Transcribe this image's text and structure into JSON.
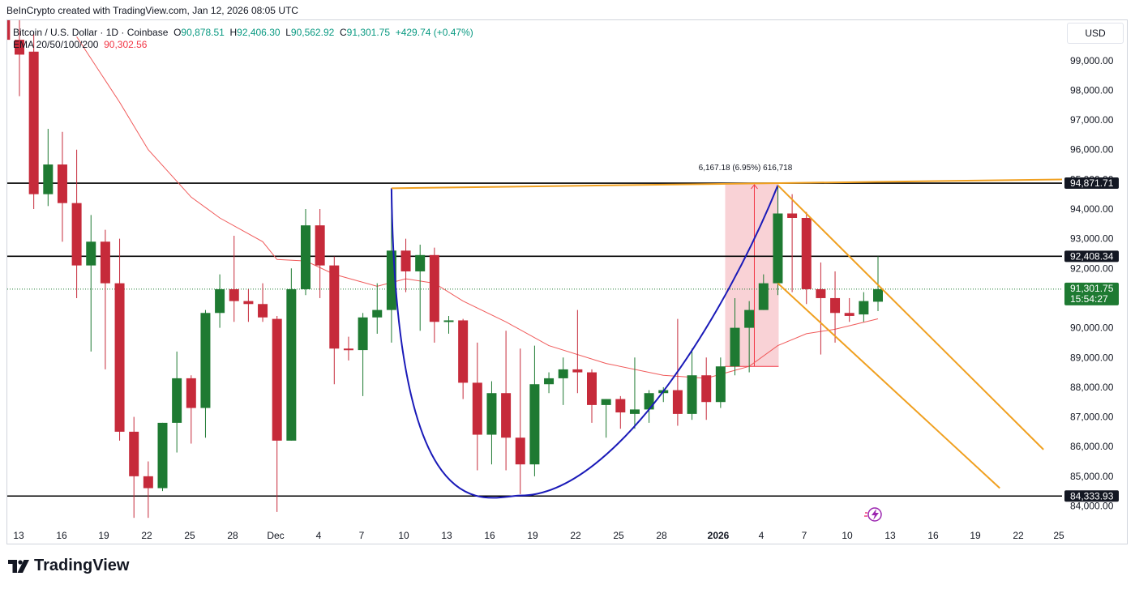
{
  "header": {
    "credit": "BeInCrypto created with TradingView.com, Jan 12, 2026 08:05 UTC"
  },
  "legend": {
    "symbol": "Bitcoin / U.S. Dollar · 1D · Coinbase",
    "o_label": "O",
    "o_value": "90,878.51",
    "h_label": "H",
    "h_value": "92,406.30",
    "l_label": "L",
    "l_value": "90,562.92",
    "c_label": "C",
    "c_value": "91,301.75",
    "change": "+429.74 (+0.47%)",
    "ema_label": "EMA 20/50/100/200",
    "ema_value": "90,302.56"
  },
  "currency": "USD",
  "measure_label": "6,167.18 (6.95%) 616,718",
  "footer": {
    "brand": "TradingView"
  },
  "colors": {
    "up": "#1e7a32",
    "down": "#c62a3a",
    "ema": "#f05a5a",
    "cup": "#1a1ab8",
    "channel": "#f0a020",
    "level": "#000000",
    "measure_fill": "#f7c3c8"
  },
  "chart_data": {
    "type": "candlestick",
    "title": "Bitcoin / U.S. Dollar · 1D · Coinbase",
    "ylim": [
      83600,
      100000
    ],
    "y_ticks": [
      "99,000.00",
      "98,000.00",
      "97,000.00",
      "96,000.00",
      "95,000.00",
      "94,000.00",
      "93,000.00",
      "92,000.00",
      "91,000.00",
      "90,000.00",
      "89,000.00",
      "88,000.00",
      "87,000.00",
      "86,000.00",
      "85,000.00",
      "84,000.00"
    ],
    "x_labels": [
      "13",
      "16",
      "19",
      "22",
      "25",
      "28",
      "Dec",
      "4",
      "7",
      "10",
      "13",
      "16",
      "19",
      "22",
      "25",
      "28",
      "2026",
      "4",
      "7",
      "10",
      "13",
      "16",
      "19",
      "22",
      "25"
    ],
    "price_badges": [
      {
        "label": "94,871.71",
        "value": 94871.71,
        "style": "dark"
      },
      {
        "label": "92,408.34",
        "value": 92408.34,
        "style": "dark"
      },
      {
        "label": "91,301.75",
        "value": 91301.75,
        "style": "green",
        "sublabel": "15:54:27"
      },
      {
        "label": "84,333.93",
        "value": 84333.93,
        "style": "dark"
      }
    ],
    "horizontal_levels": [
      94871.71,
      92408.34,
      84333.93
    ],
    "last_price": 91301.75,
    "candles": [
      {
        "date": "Nov 12",
        "o": 101300,
        "h": 101700,
        "l": 99300,
        "c": 99700
      },
      {
        "date": "Nov 13",
        "o": 99700,
        "h": 100800,
        "l": 97800,
        "c": 99200
      },
      {
        "date": "Nov 14",
        "o": 99300,
        "h": 99900,
        "l": 94000,
        "c": 94500
      },
      {
        "date": "Nov 15",
        "o": 94500,
        "h": 96700,
        "l": 94100,
        "c": 95500
      },
      {
        "date": "Nov 16",
        "o": 95500,
        "h": 96600,
        "l": 92900,
        "c": 94200
      },
      {
        "date": "Nov 17",
        "o": 94200,
        "h": 96000,
        "l": 91000,
        "c": 92100
      },
      {
        "date": "Nov 18",
        "o": 92100,
        "h": 93800,
        "l": 89200,
        "c": 92900
      },
      {
        "date": "Nov 19",
        "o": 92900,
        "h": 93300,
        "l": 88600,
        "c": 91500
      },
      {
        "date": "Nov 20",
        "o": 91500,
        "h": 93000,
        "l": 86200,
        "c": 86500
      },
      {
        "date": "Nov 21",
        "o": 86500,
        "h": 87000,
        "l": 83600,
        "c": 85000
      },
      {
        "date": "Nov 22",
        "o": 85000,
        "h": 85500,
        "l": 83600,
        "c": 84600
      },
      {
        "date": "Nov 23",
        "o": 84600,
        "h": 86800,
        "l": 84500,
        "c": 86800
      },
      {
        "date": "Nov 24",
        "o": 86800,
        "h": 89200,
        "l": 85800,
        "c": 88300
      },
      {
        "date": "Nov 25",
        "o": 88300,
        "h": 88400,
        "l": 86100,
        "c": 87300
      },
      {
        "date": "Nov 26",
        "o": 87300,
        "h": 90600,
        "l": 86300,
        "c": 90500
      },
      {
        "date": "Nov 27",
        "o": 90500,
        "h": 91800,
        "l": 90000,
        "c": 91300
      },
      {
        "date": "Nov 28",
        "o": 91300,
        "h": 93100,
        "l": 90200,
        "c": 90900
      },
      {
        "date": "Nov 29",
        "o": 90900,
        "h": 91300,
        "l": 90200,
        "c": 90800
      },
      {
        "date": "Nov 30",
        "o": 90800,
        "h": 91500,
        "l": 90200,
        "c": 90350
      },
      {
        "date": "Dec 1",
        "o": 90300,
        "h": 90400,
        "l": 83800,
        "c": 86200
      },
      {
        "date": "Dec 2",
        "o": 86200,
        "h": 92000,
        "l": 86200,
        "c": 91300
      },
      {
        "date": "Dec 3",
        "o": 91300,
        "h": 94000,
        "l": 91100,
        "c": 93450
      },
      {
        "date": "Dec 4",
        "o": 93450,
        "h": 94000,
        "l": 91000,
        "c": 92100
      },
      {
        "date": "Dec 5",
        "o": 92100,
        "h": 92400,
        "l": 88100,
        "c": 89300
      },
      {
        "date": "Dec 6",
        "o": 89300,
        "h": 89700,
        "l": 88900,
        "c": 89250
      },
      {
        "date": "Dec 7",
        "o": 89250,
        "h": 90500,
        "l": 87700,
        "c": 90350
      },
      {
        "date": "Dec 8",
        "o": 90350,
        "h": 91500,
        "l": 89800,
        "c": 90600
      },
      {
        "date": "Dec 9",
        "o": 90600,
        "h": 94600,
        "l": 89500,
        "c": 92600
      },
      {
        "date": "Dec 10",
        "o": 92600,
        "h": 93000,
        "l": 91200,
        "c": 91900
      },
      {
        "date": "Dec 11",
        "o": 91900,
        "h": 92800,
        "l": 89900,
        "c": 92450
      },
      {
        "date": "Dec 12",
        "o": 92450,
        "h": 92700,
        "l": 89500,
        "c": 90200
      },
      {
        "date": "Dec 13",
        "o": 90200,
        "h": 90400,
        "l": 89800,
        "c": 90250
      },
      {
        "date": "Dec 14",
        "o": 90250,
        "h": 90300,
        "l": 87600,
        "c": 88150
      },
      {
        "date": "Dec 15",
        "o": 88150,
        "h": 89500,
        "l": 85200,
        "c": 86400
      },
      {
        "date": "Dec 16",
        "o": 86400,
        "h": 88200,
        "l": 85400,
        "c": 87800
      },
      {
        "date": "Dec 17",
        "o": 87800,
        "h": 89900,
        "l": 85200,
        "c": 86300
      },
      {
        "date": "Dec 18",
        "o": 86300,
        "h": 89300,
        "l": 84400,
        "c": 85400
      },
      {
        "date": "Dec 19",
        "o": 85400,
        "h": 89400,
        "l": 85000,
        "c": 88100
      },
      {
        "date": "Dec 20",
        "o": 88100,
        "h": 88500,
        "l": 87800,
        "c": 88300
      },
      {
        "date": "Dec 21",
        "o": 88300,
        "h": 89000,
        "l": 87400,
        "c": 88600
      },
      {
        "date": "Dec 22",
        "o": 88600,
        "h": 90600,
        "l": 87800,
        "c": 88500
      },
      {
        "date": "Dec 23",
        "o": 88500,
        "h": 88600,
        "l": 86800,
        "c": 87400
      },
      {
        "date": "Dec 24",
        "o": 87400,
        "h": 87600,
        "l": 86300,
        "c": 87600
      },
      {
        "date": "Dec 25",
        "o": 87600,
        "h": 87700,
        "l": 86600,
        "c": 87150
      },
      {
        "date": "Dec 26",
        "o": 87100,
        "h": 89000,
        "l": 86600,
        "c": 87250
      },
      {
        "date": "Dec 27",
        "o": 87250,
        "h": 87900,
        "l": 86800,
        "c": 87800
      },
      {
        "date": "Dec 28",
        "o": 87800,
        "h": 88000,
        "l": 87500,
        "c": 87900
      },
      {
        "date": "Dec 29",
        "o": 87900,
        "h": 90300,
        "l": 86700,
        "c": 87100
      },
      {
        "date": "Dec 30",
        "o": 87100,
        "h": 89300,
        "l": 86900,
        "c": 88400
      },
      {
        "date": "Dec 31",
        "o": 88400,
        "h": 89000,
        "l": 86900,
        "c": 87500
      },
      {
        "date": "Jan 1",
        "o": 87500,
        "h": 89000,
        "l": 87300,
        "c": 88700
      },
      {
        "date": "Jan 2",
        "o": 88700,
        "h": 91000,
        "l": 88400,
        "c": 90000
      },
      {
        "date": "Jan 3",
        "o": 90000,
        "h": 90900,
        "l": 88500,
        "c": 90600
      },
      {
        "date": "Jan 4",
        "o": 90600,
        "h": 91800,
        "l": 90600,
        "c": 91500
      },
      {
        "date": "Jan 5",
        "o": 91500,
        "h": 94800,
        "l": 91100,
        "c": 93850
      },
      {
        "date": "Jan 6",
        "o": 93850,
        "h": 94500,
        "l": 91200,
        "c": 93700
      },
      {
        "date": "Jan 7",
        "o": 93700,
        "h": 93900,
        "l": 90800,
        "c": 91300
      },
      {
        "date": "Jan 8",
        "o": 91300,
        "h": 92200,
        "l": 89100,
        "c": 91000
      },
      {
        "date": "Jan 9",
        "o": 91000,
        "h": 91900,
        "l": 89500,
        "c": 90500
      },
      {
        "date": "Jan 10",
        "o": 90500,
        "h": 91000,
        "l": 90200,
        "c": 90400
      },
      {
        "date": "Jan 11",
        "o": 90450,
        "h": 91200,
        "l": 90200,
        "c": 90900
      },
      {
        "date": "Jan 12",
        "o": 90878.51,
        "h": 92406.3,
        "l": 90562.92,
        "c": 91301.75
      }
    ],
    "ema20": [
      {
        "date": "Nov 17",
        "v": 99800
      },
      {
        "date": "Nov 20",
        "v": 97600
      },
      {
        "date": "Nov 22",
        "v": 96000
      },
      {
        "date": "Nov 25",
        "v": 94400
      },
      {
        "date": "Nov 27",
        "v": 93700
      },
      {
        "date": "Nov 30",
        "v": 92900
      },
      {
        "date": "Dec 1",
        "v": 92300
      },
      {
        "date": "Dec 3",
        "v": 92250
      },
      {
        "date": "Dec 5",
        "v": 91800
      },
      {
        "date": "Dec 8",
        "v": 91400
      },
      {
        "date": "Dec 10",
        "v": 91650
      },
      {
        "date": "Dec 12",
        "v": 91500
      },
      {
        "date": "Dec 14",
        "v": 90900
      },
      {
        "date": "Dec 17",
        "v": 90200
      },
      {
        "date": "Dec 20",
        "v": 89400
      },
      {
        "date": "Dec 24",
        "v": 88800
      },
      {
        "date": "Dec 28",
        "v": 88400
      },
      {
        "date": "Dec 31",
        "v": 88300
      },
      {
        "date": "Jan 3",
        "v": 88700
      },
      {
        "date": "Jan 5",
        "v": 89400
      },
      {
        "date": "Jan 7",
        "v": 89800
      },
      {
        "date": "Jan 9",
        "v": 89950
      },
      {
        "date": "Jan 12",
        "v": 90302.56
      }
    ],
    "cup_curve": {
      "start": {
        "date": "Dec 9",
        "v": 94700
      },
      "bottom": {
        "date": "Dec 18",
        "v": 84350
      },
      "end": {
        "date": "Jan 5",
        "v": 94800
      }
    },
    "rim_line": {
      "from": {
        "date": "Dec 9",
        "v": 94700
      },
      "to": {
        "date": "Jan 24",
        "v": 95000
      }
    },
    "channel_upper": {
      "from": {
        "date": "Jan 5",
        "v": 94800
      },
      "to": {
        "date": "Jan 23",
        "v": 85900
      }
    },
    "channel_lower": {
      "from": {
        "date": "Jan 5",
        "v": 91500
      },
      "to": {
        "date": "Jan 20",
        "v": 84600
      }
    },
    "measure_box": {
      "from_date": "Jan 2",
      "to_date": "Jan 5",
      "top": 94871.71,
      "bottom": 88700
    }
  }
}
